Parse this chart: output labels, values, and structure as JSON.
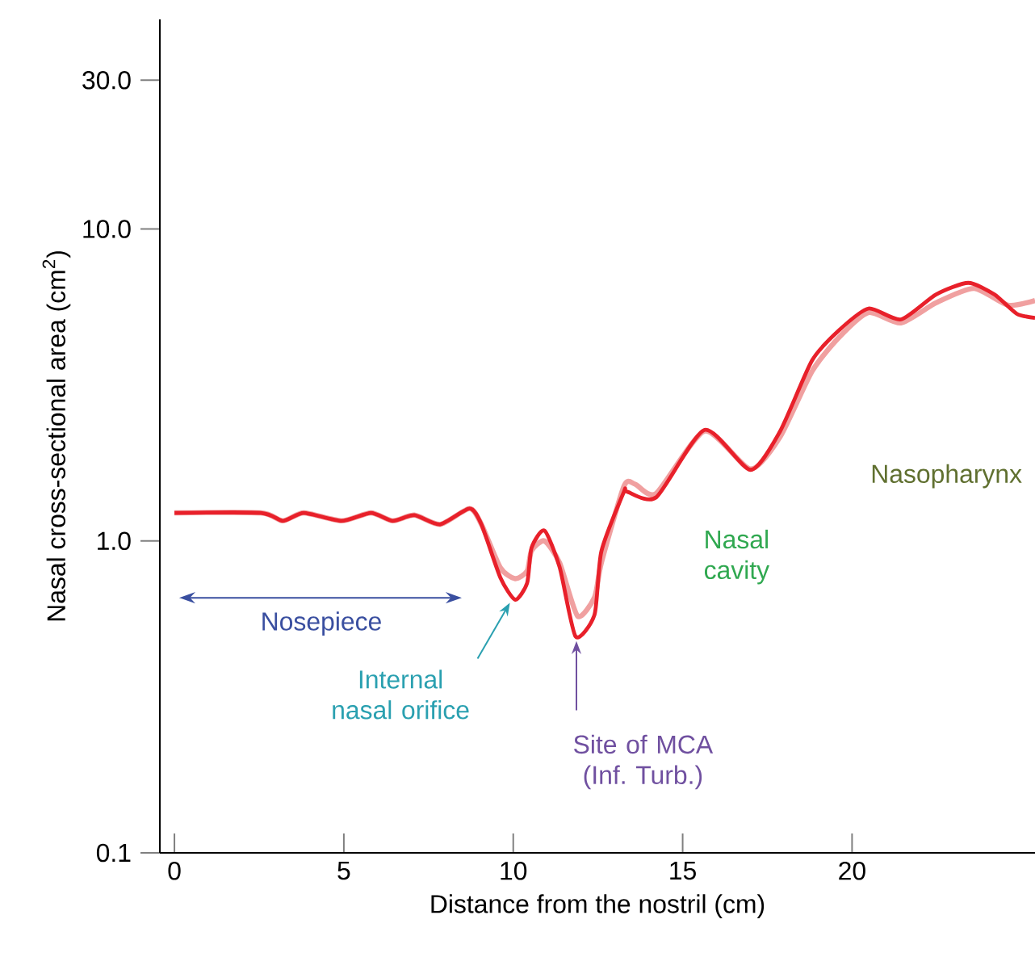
{
  "chart_data": {
    "type": "line",
    "xlabel": "Distance from the nostril (cm)",
    "ylabel": "Nasal cross-sectional area (cm$^{2}$)",
    "log": "y",
    "xlim": [
      -0.43,
      25.4
    ],
    "ylim": [
      0.1,
      47
    ],
    "xticks": [
      0,
      5,
      10,
      15,
      20
    ],
    "yticks": [
      0.1,
      {
        "value": 1,
        "label": "1.0"
      },
      {
        "value": 10,
        "label": "10.0"
      },
      {
        "value": 30,
        "label": "30.0"
      }
    ],
    "grid": false,
    "marker": "none",
    "line_style": "solid",
    "series": [
      {
        "color": "#f0a0a0",
        "x": [
          0,
          2.55,
          3.2,
          3.82,
          4.93,
          5.8,
          6.44,
          7.08,
          7.84,
          8.71,
          9.06,
          9.62,
          10.06,
          10.41,
          10.54,
          10.92,
          11.37,
          11.9,
          12.4,
          12.6,
          13.27,
          13.6,
          14.22,
          15.65,
          17.0,
          17.87,
          18.82,
          19.62,
          20.49,
          21.44,
          22.48,
          23.6,
          24.6,
          25.4
        ],
        "values": [
          1.23,
          1.23,
          1.16,
          1.23,
          1.16,
          1.23,
          1.16,
          1.21,
          1.13,
          1.27,
          1.13,
          0.82,
          0.757,
          0.8,
          0.93,
          1.0,
          0.85,
          0.574,
          0.66,
          0.85,
          1.5,
          1.52,
          1.42,
          2.25,
          1.7,
          2.15,
          3.5,
          4.5,
          5.4,
          5.0,
          5.8,
          6.45,
          5.7,
          5.9
        ]
      },
      {
        "color": "#e8202a",
        "x": [
          0,
          2.55,
          3.2,
          3.82,
          4.93,
          5.8,
          6.44,
          7.08,
          7.84,
          8.71,
          9.06,
          9.62,
          10.06,
          10.41,
          10.54,
          10.92,
          11.37,
          11.84,
          12.4,
          12.6,
          13.27,
          13.35,
          14.22,
          15.65,
          17.0,
          17.87,
          18.82,
          19.62,
          20.49,
          21.44,
          22.48,
          23.43,
          24.2,
          24.86,
          25.4
        ],
        "values": [
          1.23,
          1.23,
          1.16,
          1.23,
          1.16,
          1.23,
          1.16,
          1.21,
          1.13,
          1.27,
          1.13,
          0.763,
          0.648,
          0.733,
          0.95,
          1.08,
          0.823,
          0.494,
          0.581,
          0.925,
          1.44,
          1.44,
          1.38,
          2.27,
          1.69,
          2.24,
          3.79,
          4.74,
          5.56,
          5.13,
          6.17,
          6.72,
          6.17,
          5.35,
          5.19
        ]
      }
    ],
    "annotations": [
      "Nosepiece",
      "Internal nasal orifice",
      "Site of MCA (Inf. Turb.)",
      "Nasal cavity",
      "Nasopharynx"
    ]
  }
}
